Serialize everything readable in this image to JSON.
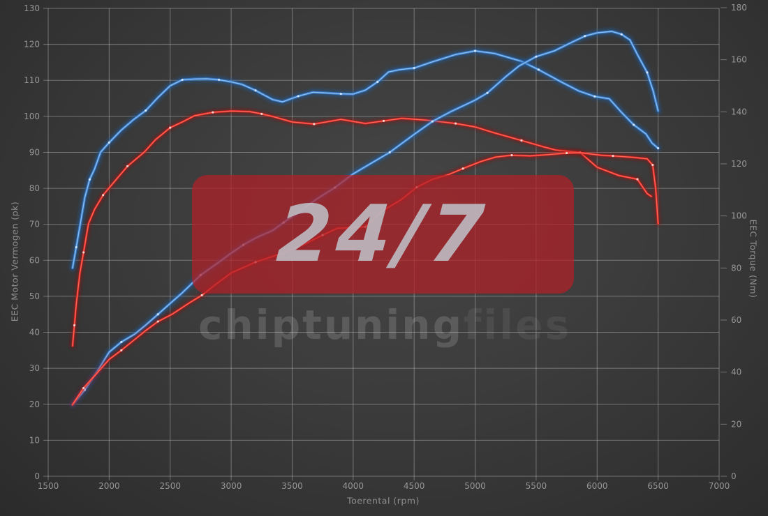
{
  "watermark": {
    "big_text": "24/7",
    "brand_light": "chiptuning",
    "brand_dark": "files"
  },
  "chart_data": {
    "type": "line",
    "title": "",
    "xlabel": "Toerental (rpm)",
    "ylabel_left": "EEC Motor Vermogen (pk)",
    "ylabel_right": "EEC Torque (Nm)",
    "xlim": [
      1500,
      7000
    ],
    "ylim_left": [
      0,
      130
    ],
    "ylim_right": [
      0,
      180
    ],
    "grid": true,
    "legend": "none",
    "x_ticks": [
      1500,
      2000,
      2500,
      3000,
      3500,
      4000,
      4500,
      5000,
      5500,
      6000,
      6500,
      7000
    ],
    "left_ticks": [
      0,
      10,
      20,
      30,
      40,
      50,
      60,
      70,
      80,
      90,
      100,
      110,
      120,
      130
    ],
    "right_ticks": [
      0,
      20,
      40,
      60,
      80,
      100,
      120,
      140,
      160,
      180
    ],
    "colors": {
      "blue_core": "#8fc0f2",
      "blue_main": "#3b82d4",
      "blue_glow": "#1f5fa8",
      "blue_dot": "#d6e8ff",
      "red_core": "#ff6a5e",
      "red_main": "#e3241d",
      "red_glow": "#991111",
      "red_dot": "#ffd9d4",
      "grid": "rgba(214,214,214,0.40)",
      "tick_label": "#969696"
    },
    "series": [
      {
        "name": "torque-blue",
        "axis": "right",
        "unit": "Nm",
        "color": "blue",
        "points": [
          [
            1700,
            80
          ],
          [
            1730,
            88
          ],
          [
            1760,
            96
          ],
          [
            1800,
            107
          ],
          [
            1840,
            114
          ],
          [
            1880,
            118
          ],
          [
            1930,
            124.5
          ],
          [
            2000,
            128.2
          ],
          [
            2100,
            133
          ],
          [
            2200,
            137
          ],
          [
            2300,
            140.5
          ],
          [
            2400,
            145.5
          ],
          [
            2500,
            150
          ],
          [
            2600,
            152.3
          ],
          [
            2700,
            152.6
          ],
          [
            2800,
            152.7
          ],
          [
            2900,
            152.3
          ],
          [
            3000,
            151.5
          ],
          [
            3090,
            150.5
          ],
          [
            3200,
            148.2
          ],
          [
            3340,
            144.7
          ],
          [
            3420,
            143.8
          ],
          [
            3550,
            146
          ],
          [
            3670,
            147.5
          ],
          [
            3800,
            147.2
          ],
          [
            3900,
            146.9
          ],
          [
            4000,
            146.8
          ],
          [
            4100,
            148.3
          ],
          [
            4200,
            151.5
          ],
          [
            4290,
            155.3
          ],
          [
            4380,
            156.2
          ],
          [
            4500,
            156.8
          ],
          [
            4650,
            159.2
          ],
          [
            4840,
            162
          ],
          [
            5000,
            163.4
          ],
          [
            5160,
            162.4
          ],
          [
            5380,
            159.4
          ],
          [
            5520,
            156.2
          ],
          [
            5700,
            151.6
          ],
          [
            5850,
            148
          ],
          [
            5980,
            145.9
          ],
          [
            6100,
            145
          ],
          [
            6200,
            139.8
          ],
          [
            6300,
            135
          ],
          [
            6400,
            131.5
          ],
          [
            6450,
            128
          ],
          [
            6500,
            126
          ]
        ]
      },
      {
        "name": "torque-red",
        "axis": "right",
        "unit": "Nm",
        "color": "red",
        "points": [
          [
            1700,
            50.1
          ],
          [
            1715,
            58
          ],
          [
            1730,
            66
          ],
          [
            1760,
            78
          ],
          [
            1790,
            86
          ],
          [
            1830,
            97
          ],
          [
            1880,
            102.5
          ],
          [
            1950,
            108
          ],
          [
            2000,
            110.8
          ],
          [
            2060,
            114.1
          ],
          [
            2150,
            119.1
          ],
          [
            2290,
            124.6
          ],
          [
            2380,
            129.3
          ],
          [
            2500,
            133.9
          ],
          [
            2600,
            136.1
          ],
          [
            2700,
            138.5
          ],
          [
            2850,
            139.8
          ],
          [
            3000,
            140.3
          ],
          [
            3150,
            140.1
          ],
          [
            3250,
            139.2
          ],
          [
            3340,
            138.2
          ],
          [
            3500,
            136.1
          ],
          [
            3680,
            135.3
          ],
          [
            3900,
            137.1
          ],
          [
            4100,
            135.5
          ],
          [
            4250,
            136.5
          ],
          [
            4400,
            137.5
          ],
          [
            4600,
            136.8
          ],
          [
            4840,
            135.5
          ],
          [
            5000,
            134.2
          ],
          [
            5150,
            132
          ],
          [
            5380,
            129
          ],
          [
            5570,
            126.4
          ],
          [
            5660,
            125.3
          ],
          [
            5860,
            124.4
          ],
          [
            6000,
            118.7
          ],
          [
            6180,
            115.5
          ],
          [
            6330,
            114.1
          ],
          [
            6410,
            108.6
          ],
          [
            6445,
            107.5
          ]
        ]
      },
      {
        "name": "power-blue",
        "axis": "left",
        "unit": "pk",
        "color": "blue",
        "points": [
          [
            1700,
            19.9
          ],
          [
            1800,
            24
          ],
          [
            1900,
            29
          ],
          [
            2000,
            34.5
          ],
          [
            2100,
            37.3
          ],
          [
            2210,
            39.5
          ],
          [
            2300,
            42
          ],
          [
            2400,
            45
          ],
          [
            2500,
            48
          ],
          [
            2600,
            51
          ],
          [
            2750,
            55.9
          ],
          [
            2900,
            59.5
          ],
          [
            3000,
            62
          ],
          [
            3100,
            64.3
          ],
          [
            3200,
            66.2
          ],
          [
            3340,
            68.3
          ],
          [
            3430,
            70.5
          ],
          [
            3560,
            73.5
          ],
          [
            3700,
            77
          ],
          [
            3850,
            80.2
          ],
          [
            4000,
            84
          ],
          [
            4150,
            87
          ],
          [
            4300,
            90
          ],
          [
            4400,
            92.5
          ],
          [
            4500,
            95
          ],
          [
            4650,
            98.6
          ],
          [
            4800,
            101.3
          ],
          [
            5000,
            104.5
          ],
          [
            5100,
            106.5
          ],
          [
            5250,
            111
          ],
          [
            5360,
            114
          ],
          [
            5500,
            116.6
          ],
          [
            5650,
            118.2
          ],
          [
            5800,
            120.7
          ],
          [
            5900,
            122.3
          ],
          [
            6000,
            123.2
          ],
          [
            6120,
            123.6
          ],
          [
            6200,
            122.8
          ],
          [
            6270,
            121.2
          ],
          [
            6330,
            117.2
          ],
          [
            6410,
            112.2
          ],
          [
            6460,
            107
          ],
          [
            6500,
            101.5
          ]
        ]
      },
      {
        "name": "power-red",
        "axis": "left",
        "unit": "pk",
        "color": "red",
        "points": [
          [
            1700,
            19.9
          ],
          [
            1790,
            24.5
          ],
          [
            1880,
            27.9
          ],
          [
            2000,
            32.5
          ],
          [
            2100,
            35
          ],
          [
            2180,
            37.2
          ],
          [
            2300,
            40.5
          ],
          [
            2400,
            43
          ],
          [
            2520,
            45.1
          ],
          [
            2650,
            48
          ],
          [
            2760,
            50.3
          ],
          [
            2880,
            53.5
          ],
          [
            3000,
            56.5
          ],
          [
            3200,
            59.5
          ],
          [
            3430,
            62.1
          ],
          [
            3600,
            64.5
          ],
          [
            3750,
            67
          ],
          [
            3870,
            68.9
          ],
          [
            4000,
            69.1
          ],
          [
            4100,
            69.3
          ],
          [
            4230,
            73.5
          ],
          [
            4400,
            77
          ],
          [
            4520,
            80.3
          ],
          [
            4650,
            82.5
          ],
          [
            4780,
            83.8
          ],
          [
            4900,
            85.5
          ],
          [
            5050,
            87.5
          ],
          [
            5170,
            88.7
          ],
          [
            5300,
            89.2
          ],
          [
            5450,
            89
          ],
          [
            5610,
            89.4
          ],
          [
            5750,
            89.8
          ],
          [
            5860,
            89.9
          ],
          [
            6030,
            89.2
          ],
          [
            6130,
            89
          ],
          [
            6300,
            88.6
          ],
          [
            6410,
            88.2
          ],
          [
            6455,
            86.5
          ],
          [
            6480,
            80
          ],
          [
            6500,
            70.2
          ]
        ]
      }
    ]
  }
}
